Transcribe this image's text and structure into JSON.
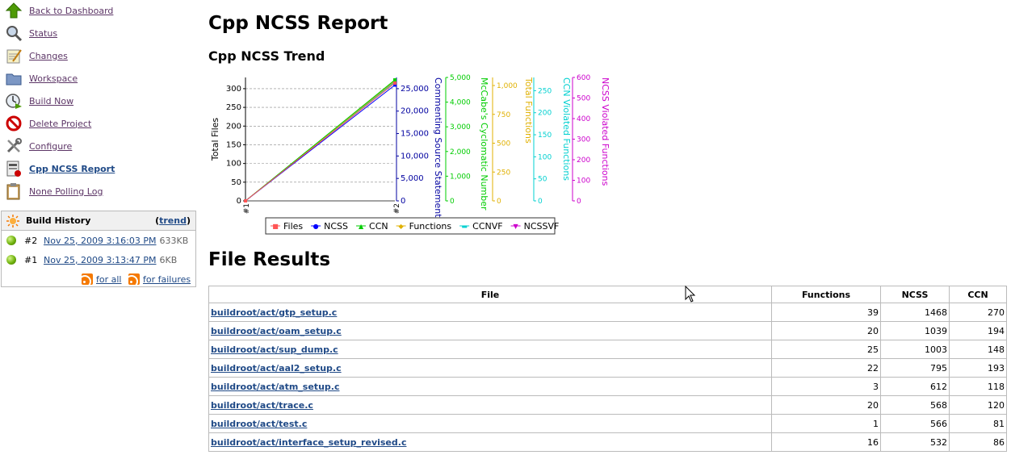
{
  "sidebar": {
    "items": [
      {
        "label": "Back to Dashboard",
        "icon": "up-arrow-icon"
      },
      {
        "label": "Status",
        "icon": "magnifier-icon"
      },
      {
        "label": "Changes",
        "icon": "notepad-icon"
      },
      {
        "label": "Workspace",
        "icon": "folder-icon"
      },
      {
        "label": "Build Now",
        "icon": "clock-play-icon"
      },
      {
        "label": "Delete Project",
        "icon": "no-entry-icon"
      },
      {
        "label": "Configure",
        "icon": "tools-icon"
      },
      {
        "label": "Cpp NCSS Report",
        "icon": "report-icon"
      },
      {
        "label": "None Polling Log",
        "icon": "clipboard-icon"
      }
    ]
  },
  "build_history": {
    "title": "Build History",
    "trend_open": "(",
    "trend_label": "trend",
    "trend_close": ")",
    "builds": [
      {
        "number": "#2",
        "date": "Nov 25, 2009 3:16:03 PM",
        "size": "633KB"
      },
      {
        "number": "#1",
        "date": "Nov 25, 2009 3:13:47 PM",
        "size": "6KB"
      }
    ],
    "rss_all": "for all",
    "rss_failures": "for failures"
  },
  "page_title": "Cpp NCSS Report",
  "trend_title": "Cpp NCSS Trend",
  "results_title": "File Results",
  "chart_data": {
    "type": "line",
    "categories": [
      "#1",
      "#2"
    ],
    "axes": [
      {
        "label": "Total Files",
        "ticks": [
          "0",
          "50",
          "100",
          "150",
          "200",
          "250",
          "300"
        ],
        "range": [
          0,
          330
        ],
        "color": "#000000"
      },
      {
        "label": "Commenting Source Statements",
        "ticks": [
          "0",
          "5,000",
          "10,000",
          "15,000",
          "20,000",
          "25,000"
        ],
        "range": [
          0,
          27500
        ],
        "color": "#0000a0"
      },
      {
        "label": "McCabe's Cyclomatic Number",
        "ticks": [
          "0",
          "1,000",
          "2,000",
          "3,000",
          "4,000",
          "5,000"
        ],
        "range": [
          0,
          5000
        ],
        "color": "#00cc00"
      },
      {
        "label": "Total Functions",
        "ticks": [
          "0",
          "250",
          "500",
          "750",
          "1,000"
        ],
        "range": [
          0,
          1070
        ],
        "color": "#e0b000"
      },
      {
        "label": "CCN Violated Functions",
        "ticks": [
          "0",
          "50",
          "100",
          "150",
          "200",
          "250"
        ],
        "range": [
          0,
          280
        ],
        "color": "#00d0d0"
      },
      {
        "label": "NCSS Violated Functions",
        "ticks": [
          "0",
          "100",
          "200",
          "300",
          "400",
          "500",
          "600"
        ],
        "range": [
          0,
          600
        ],
        "color": "#cc00cc"
      }
    ],
    "series": [
      {
        "name": "Files",
        "values": [
          0,
          315
        ],
        "color": "#ff5555",
        "marker": "■"
      },
      {
        "name": "NCSS",
        "values": [
          0,
          25800
        ],
        "color": "#0000ff",
        "marker": "●"
      },
      {
        "name": "CCN",
        "values": [
          0,
          4900
        ],
        "color": "#00cc00",
        "marker": "▲"
      },
      {
        "name": "Functions",
        "values": [
          0,
          1040
        ],
        "color": "#e0b000",
        "marker": "◆"
      },
      {
        "name": "CCNVF",
        "values": [
          0,
          270
        ],
        "color": "#00d0d0",
        "marker": "▬"
      },
      {
        "name": "NCSSVF",
        "values": [
          0,
          580
        ],
        "color": "#cc00cc",
        "marker": "▼"
      }
    ],
    "grid": true,
    "legend": "bottom"
  },
  "table": {
    "headers": [
      "File",
      "Functions",
      "NCSS",
      "CCN"
    ],
    "rows": [
      {
        "file": "buildroot/act/gtp_setup.c",
        "functions": "39",
        "ncss": "1468",
        "ccn": "270"
      },
      {
        "file": "buildroot/act/oam_setup.c",
        "functions": "20",
        "ncss": "1039",
        "ccn": "194"
      },
      {
        "file": "buildroot/act/sup_dump.c",
        "functions": "25",
        "ncss": "1003",
        "ccn": "148"
      },
      {
        "file": "buildroot/act/aal2_setup.c",
        "functions": "22",
        "ncss": "795",
        "ccn": "193"
      },
      {
        "file": "buildroot/act/atm_setup.c",
        "functions": "3",
        "ncss": "612",
        "ccn": "118"
      },
      {
        "file": "buildroot/act/trace.c",
        "functions": "20",
        "ncss": "568",
        "ccn": "120"
      },
      {
        "file": "buildroot/act/test.c",
        "functions": "1",
        "ncss": "566",
        "ccn": "81"
      },
      {
        "file": "buildroot/act/interface_setup_revised.c",
        "functions": "16",
        "ncss": "532",
        "ccn": "86"
      }
    ]
  }
}
